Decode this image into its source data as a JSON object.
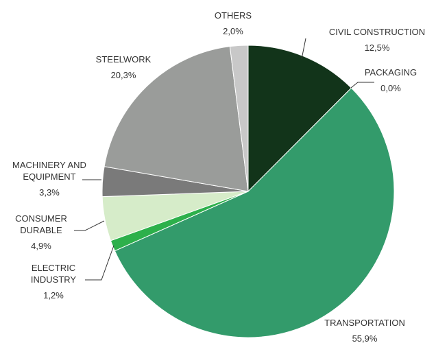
{
  "chart_data": {
    "type": "pie",
    "categories": [
      "CIVIL CONSTRUCTION",
      "PACKAGING",
      "TRANSPORTATION",
      "ELECTRIC INDUSTRY",
      "CONSUMER DURABLE",
      "MACHINERY AND EQUIPMENT",
      "STEELWORK",
      "OTHERS"
    ],
    "values": [
      12.5,
      0.0,
      55.9,
      1.2,
      4.9,
      3.3,
      20.3,
      2.0
    ],
    "value_labels": [
      "12,5%",
      "0,0%",
      "55,9%",
      "1,2%",
      "4,9%",
      "3,3%",
      "20,3%",
      "2,0%"
    ],
    "colors": [
      "#12341a",
      "#1f6b3f",
      "#339b6b",
      "#2db04b",
      "#d6ecc9",
      "#7a7a7a",
      "#9a9c9a",
      "#c8c8c8"
    ]
  }
}
